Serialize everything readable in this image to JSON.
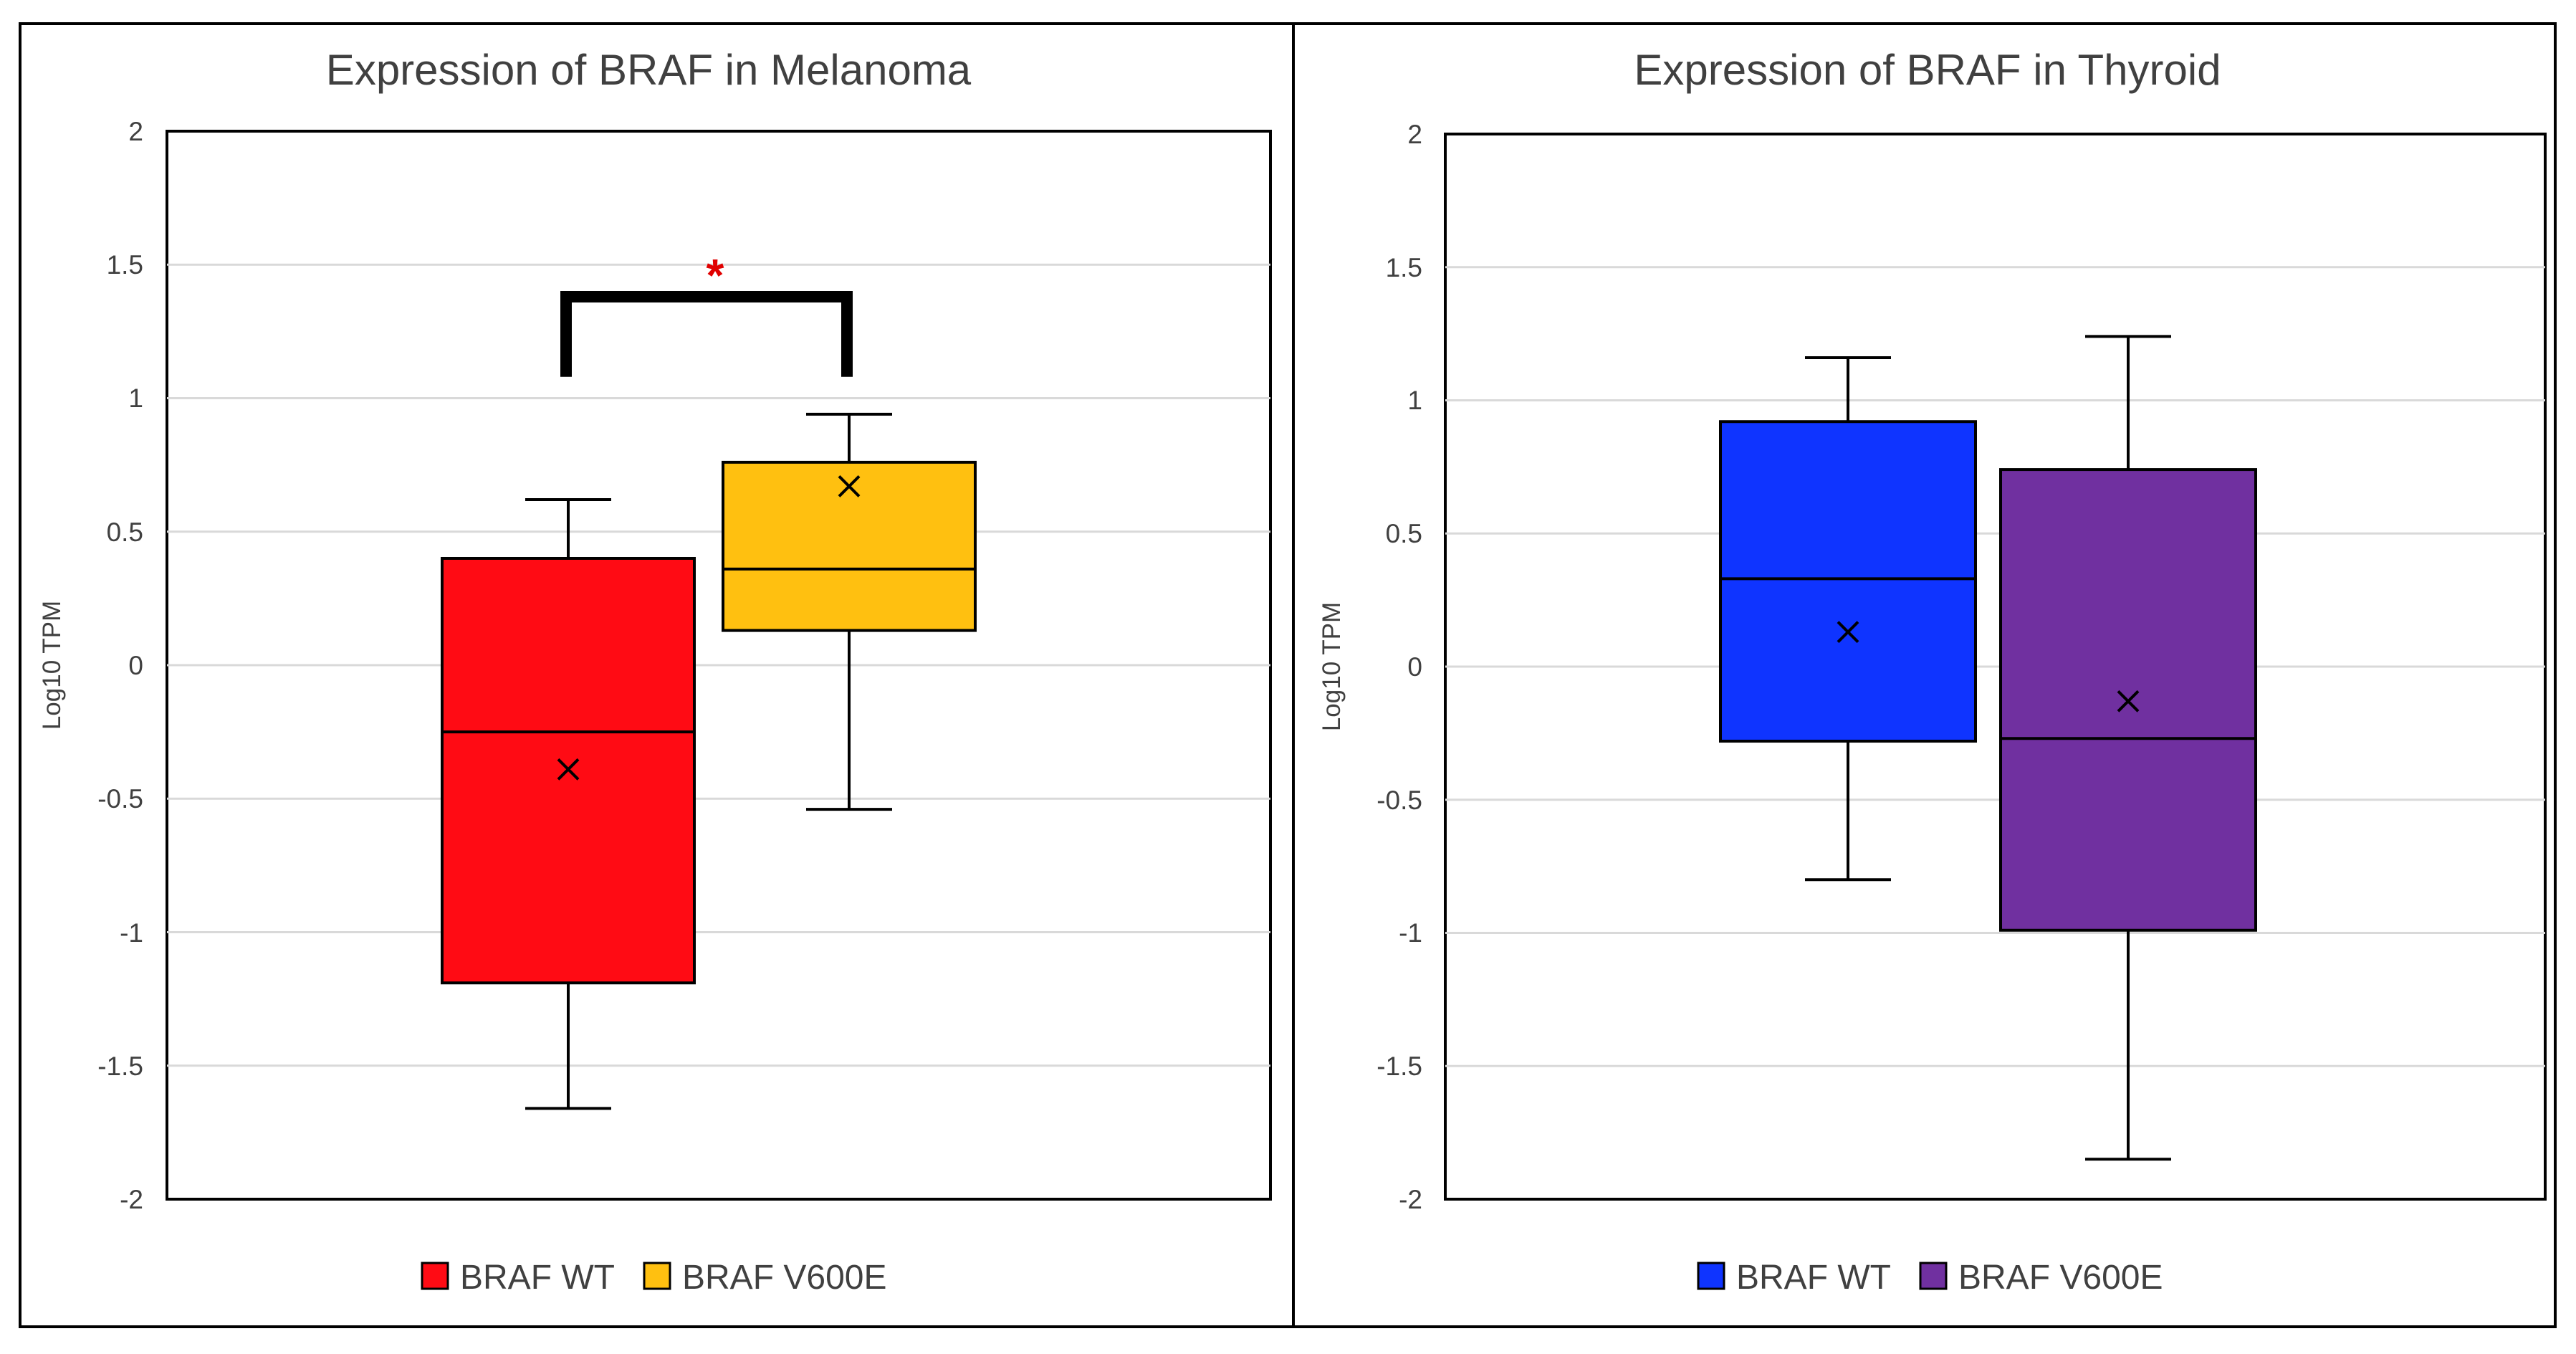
{
  "chart_data": [
    {
      "type": "box",
      "title": "Expression of BRAF in Melanoma",
      "xlabel": "",
      "ylabel": "Log10 TPM",
      "ylim": [
        -2,
        2
      ],
      "yticks": [
        "2",
        "1.5",
        "1",
        "0.5",
        "0",
        "-0.5",
        "-1",
        "-1.5",
        "-2"
      ],
      "grid": true,
      "legend_position": "bottom",
      "series": [
        {
          "name": "BRAF WT",
          "color": "#FF0B14",
          "whisker_low": -1.66,
          "q1": -1.19,
          "median": -0.25,
          "q3": 0.4,
          "whisker_high": 0.62,
          "mean": -0.39
        },
        {
          "name": "BRAF V600E",
          "color": "#FFC010",
          "whisker_low": -0.54,
          "q1": 0.13,
          "median": 0.36,
          "q3": 0.76,
          "whisker_high": 0.94,
          "mean": 0.67
        }
      ],
      "annotation": {
        "text": "*",
        "color": "#E00000",
        "between": [
          "BRAF WT",
          "BRAF V600E"
        ],
        "bracket_y": 1.38,
        "bracket_bottom": 1.08
      }
    },
    {
      "type": "box",
      "title": "Expression of BRAF in Thyroid",
      "xlabel": "",
      "ylabel": "Log10 TPM",
      "ylim": [
        -2,
        2
      ],
      "yticks": [
        "2",
        "1.5",
        "1",
        "0.5",
        "0",
        "-0.5",
        "-1",
        "-1.5",
        "-2"
      ],
      "grid": true,
      "legend_position": "bottom",
      "series": [
        {
          "name": "BRAF WT",
          "color": "#0F34FF",
          "whisker_low": -0.8,
          "q1": -0.28,
          "median": 0.33,
          "q3": 0.92,
          "whisker_high": 1.16,
          "mean": 0.13
        },
        {
          "name": "BRAF V600E",
          "color": "#7030A0",
          "whisker_low": -1.85,
          "q1": -0.99,
          "median": -0.27,
          "q3": 0.74,
          "whisker_high": 1.24,
          "mean": -0.13
        }
      ]
    }
  ]
}
